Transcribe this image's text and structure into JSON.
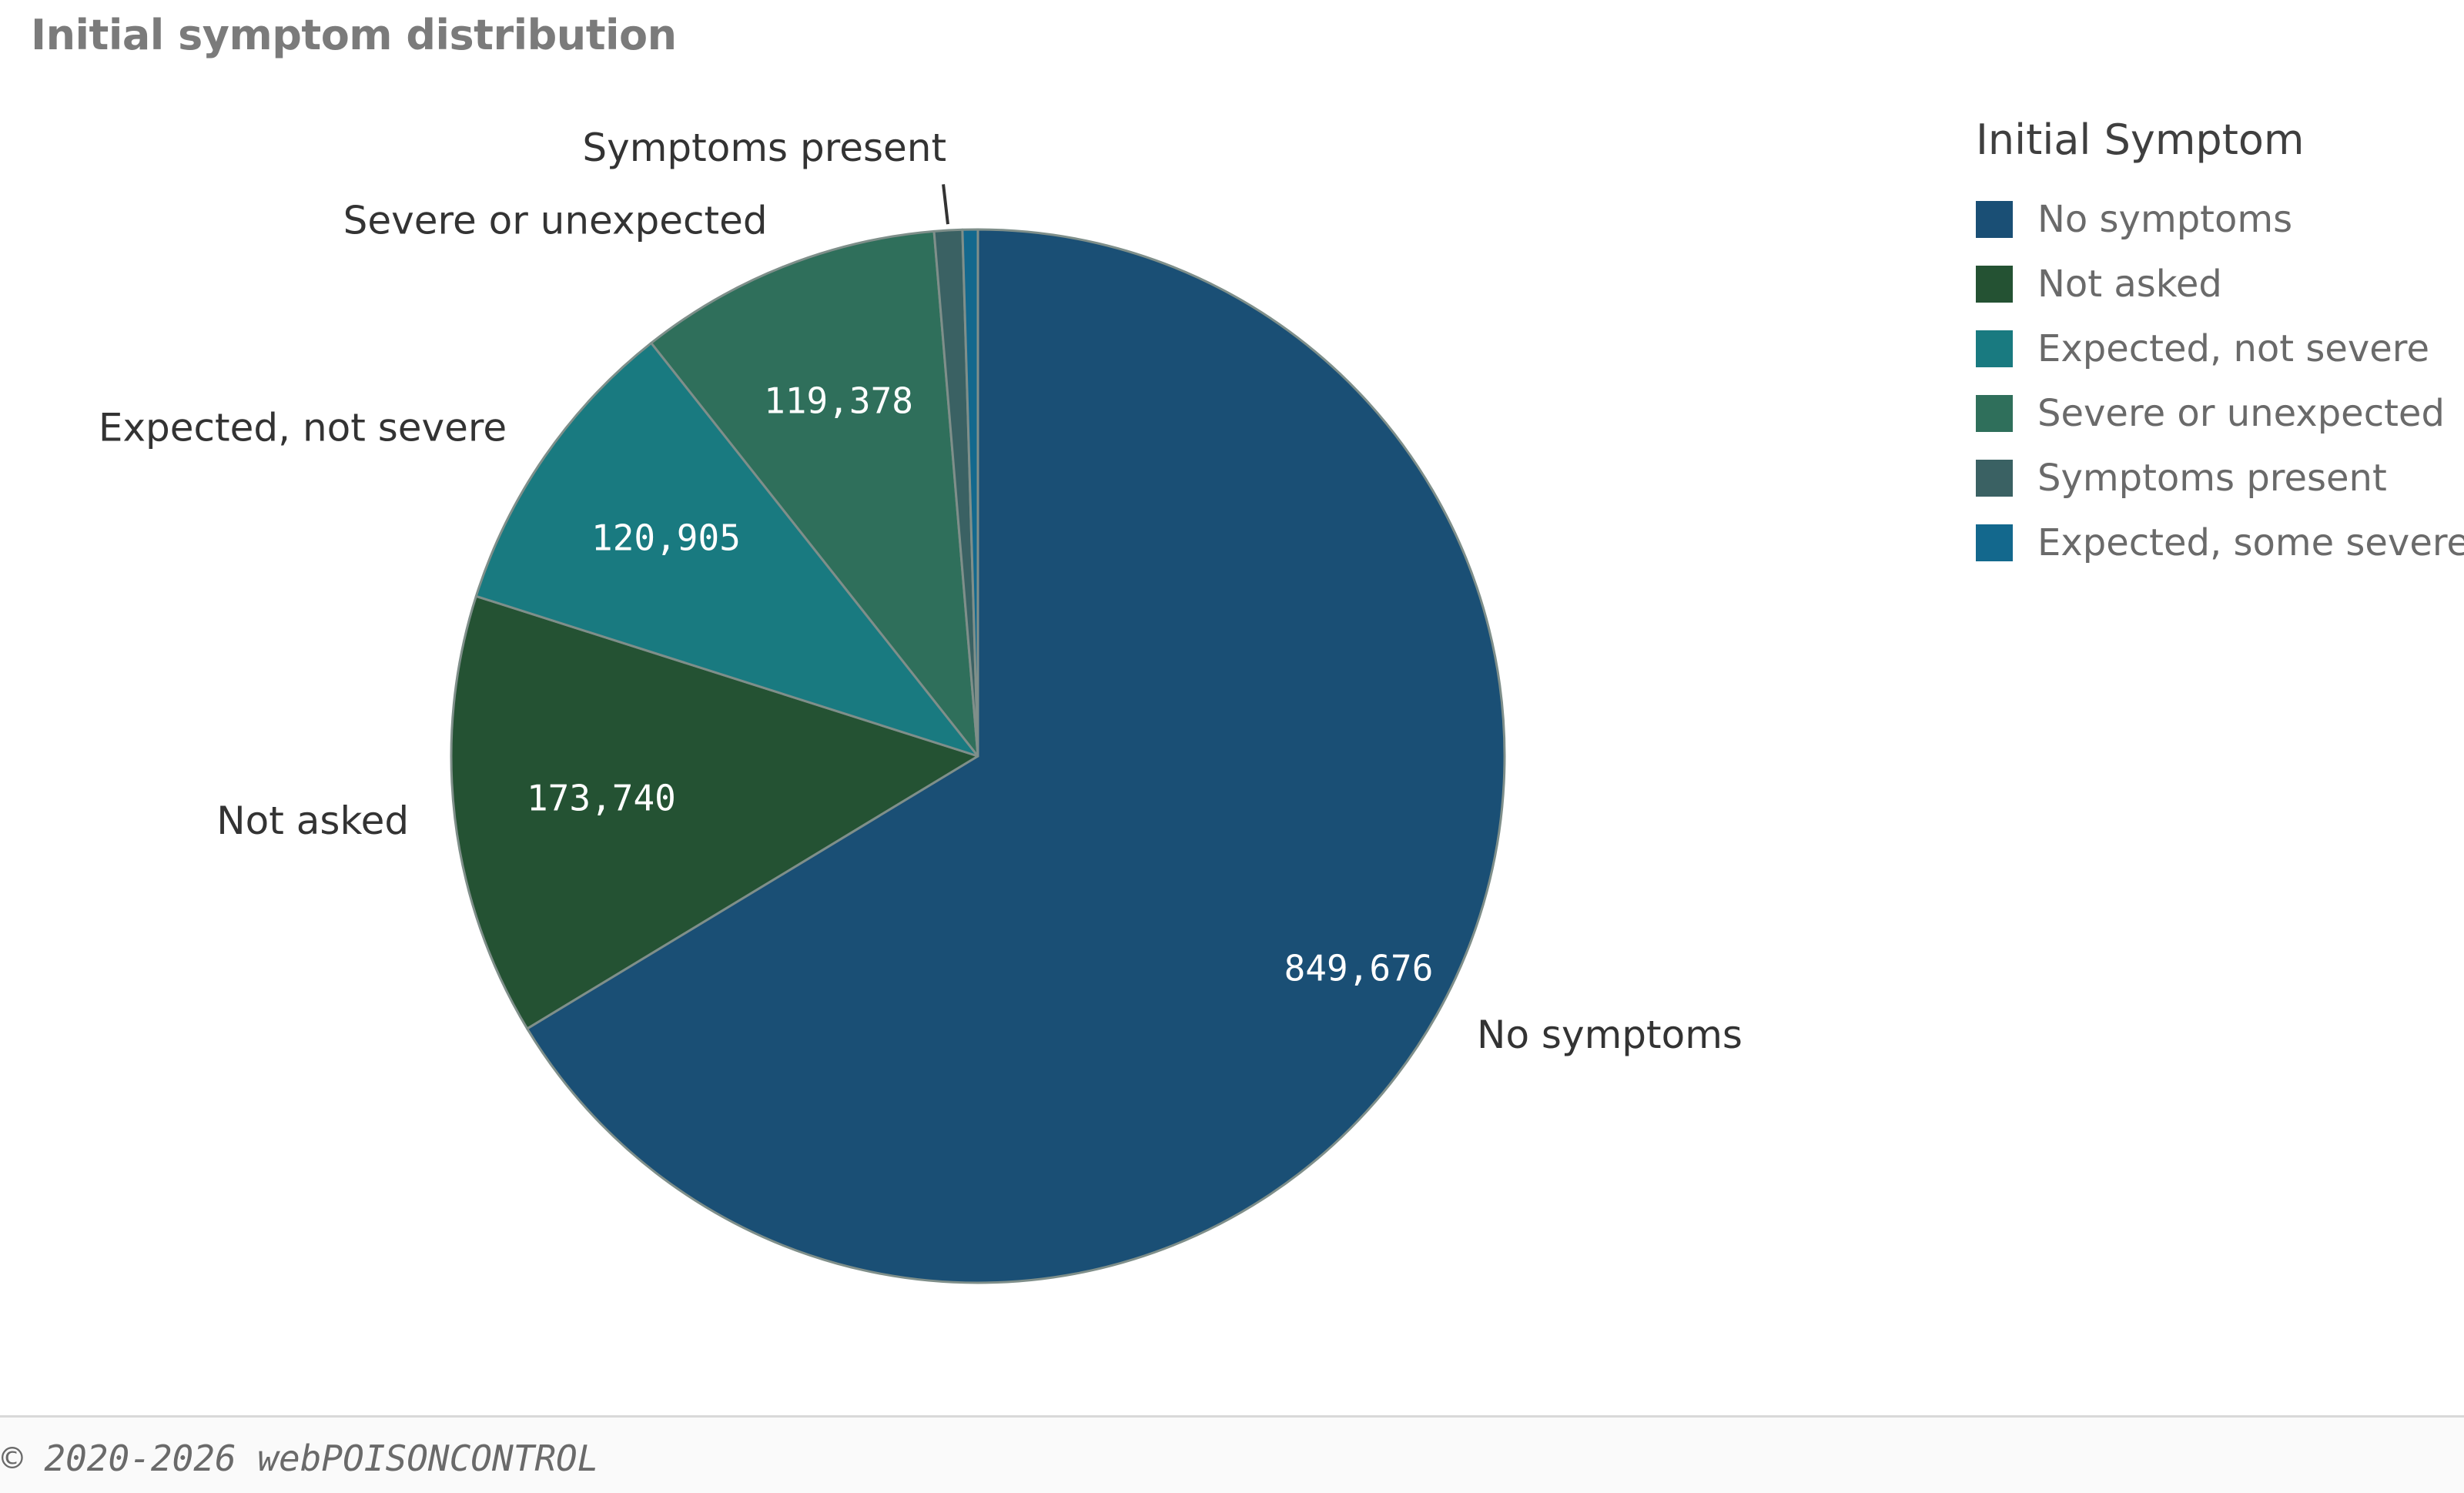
{
  "title": "Initial symptom distribution",
  "legend": {
    "title": "Initial Symptom",
    "items": [
      {
        "label": "No symptoms",
        "color": "#1a4f75"
      },
      {
        "label": "Not asked",
        "color": "#245233"
      },
      {
        "label": "Expected, not severe",
        "color": "#197a80"
      },
      {
        "label": "Severe or unexpected",
        "color": "#2f6f5b"
      },
      {
        "label": "Symptoms present",
        "color": "#3a6163"
      },
      {
        "label": "Expected, some severe",
        "color": "#13688d"
      }
    ]
  },
  "footer": {
    "text": "© 2020-2026 webPOISONCONTROL"
  },
  "chart_data": {
    "type": "pie",
    "title": "Initial symptom distribution",
    "legend_title": "Initial Symptom",
    "legend_position": "right",
    "start_angle": "12 o'clock, clockwise",
    "slices": [
      {
        "label": "No symptoms",
        "value": 849676,
        "value_label": "849,676",
        "color": "#1a4f75"
      },
      {
        "label": "Not asked",
        "value": 173740,
        "value_label": "173,740",
        "color": "#245233"
      },
      {
        "label": "Expected, not severe",
        "value": 120905,
        "value_label": "120,905",
        "color": "#197a80"
      },
      {
        "label": "Severe or unexpected",
        "value": 119378,
        "value_label": "119,378",
        "color": "#2f6f5b"
      },
      {
        "label": "Symptoms present",
        "value": 11000,
        "value_label": "",
        "color": "#3a6163"
      },
      {
        "label": "Expected, some severe",
        "value": 6000,
        "value_label": "",
        "color": "#13688d"
      }
    ]
  }
}
